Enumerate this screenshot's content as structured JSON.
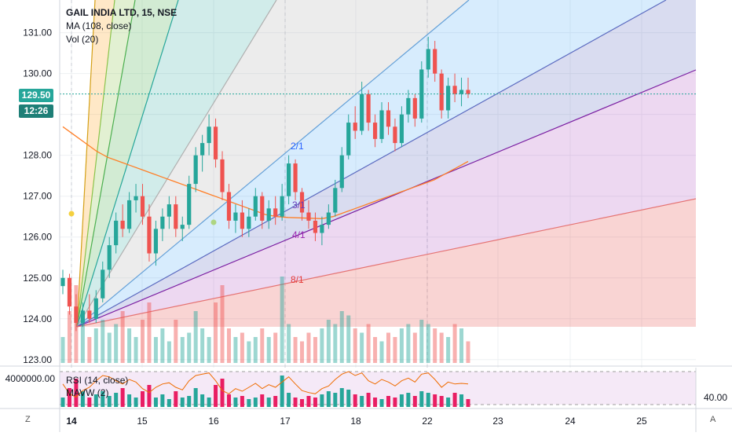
{
  "header": {
    "symbol": "GAIL INDIA LTD, 15, NSE",
    "ma": "MA (108, close)",
    "vol": "Vol (20)"
  },
  "price_axis": {
    "last_price": "129.50",
    "countdown": "12:26"
  },
  "lower_pane": {
    "rsi_label": "RSI (14, close)",
    "mavw_label": "MAVW (2)",
    "volume_tick": "4000000.00",
    "rsi_tick": "40.00"
  },
  "corners": {
    "left": "Z",
    "right": "A"
  },
  "colors": {
    "up": "#26a69a",
    "down": "#ef5350",
    "ma": "#ff7f27",
    "last_price_tag": "#26a69a",
    "axis_text": "#131722"
  },
  "chart_data": {
    "type": "candlestick",
    "title": "GAIL INDIA LTD, 15, NSE",
    "x_tick_labels": [
      "14",
      "15",
      "16",
      "17",
      "18",
      "22",
      "23",
      "24",
      "25"
    ],
    "y_tick_labels": [
      "123.00",
      "124.00",
      "125.00",
      "126.00",
      "127.00",
      "128.00",
      "129.00",
      "130.00",
      "131.00"
    ],
    "ylim": [
      122.9,
      131.8
    ],
    "fan_lines": [
      {
        "label": "2/1",
        "color": "#2962ff"
      },
      {
        "label": "3/1",
        "color": "#673ab7"
      },
      {
        "label": "4/1",
        "color": "#9c27b0"
      },
      {
        "label": "8/1",
        "color": "#e53935"
      }
    ],
    "candles": [
      [
        124.8,
        125.2,
        124.6,
        125.0
      ],
      [
        125.0,
        125.1,
        124.1,
        124.3
      ],
      [
        124.3,
        124.6,
        123.7,
        123.9
      ],
      [
        123.9,
        124.4,
        123.8,
        124.2
      ],
      [
        124.2,
        124.6,
        123.9,
        124.0
      ],
      [
        124.0,
        124.7,
        123.9,
        124.5
      ],
      [
        124.5,
        125.4,
        124.4,
        125.2
      ],
      [
        125.2,
        126.0,
        125.0,
        125.8
      ],
      [
        125.8,
        126.6,
        125.6,
        126.4
      ],
      [
        126.4,
        126.8,
        126.0,
        126.2
      ],
      [
        126.2,
        127.1,
        126.1,
        126.9
      ],
      [
        126.9,
        127.3,
        126.6,
        127.0
      ],
      [
        127.0,
        127.3,
        126.3,
        126.5
      ],
      [
        126.5,
        126.8,
        125.4,
        125.6
      ],
      [
        125.6,
        126.4,
        125.3,
        126.2
      ],
      [
        126.2,
        126.7,
        125.9,
        126.5
      ],
      [
        126.5,
        127.0,
        126.2,
        126.8
      ],
      [
        126.8,
        127.0,
        126.0,
        126.2
      ],
      [
        126.2,
        126.5,
        125.9,
        126.3
      ],
      [
        126.3,
        127.5,
        126.2,
        127.3
      ],
      [
        127.3,
        128.2,
        127.1,
        128.0
      ],
      [
        128.0,
        128.5,
        127.6,
        128.3
      ],
      [
        128.3,
        129.0,
        128.0,
        128.7
      ],
      [
        128.7,
        128.9,
        127.7,
        127.9
      ],
      [
        127.9,
        128.1,
        126.9,
        127.1
      ],
      [
        127.1,
        127.3,
        126.2,
        126.4
      ],
      [
        126.4,
        126.8,
        126.1,
        126.6
      ],
      [
        126.6,
        126.9,
        126.0,
        126.2
      ],
      [
        126.2,
        126.7,
        126.0,
        126.5
      ],
      [
        126.5,
        127.2,
        126.4,
        127.0
      ],
      [
        127.0,
        127.1,
        126.2,
        126.4
      ],
      [
        126.4,
        126.9,
        126.2,
        126.7
      ],
      [
        126.7,
        127.0,
        126.3,
        126.5
      ],
      [
        126.5,
        127.3,
        126.4,
        127.0
      ],
      [
        127.0,
        128.0,
        126.8,
        127.8
      ],
      [
        127.8,
        127.9,
        126.9,
        127.1
      ],
      [
        127.1,
        127.2,
        126.4,
        126.6
      ],
      [
        126.6,
        126.9,
        126.2,
        126.4
      ],
      [
        126.4,
        126.6,
        125.9,
        126.1
      ],
      [
        126.1,
        126.5,
        125.8,
        126.3
      ],
      [
        126.3,
        126.8,
        126.2,
        126.6
      ],
      [
        126.6,
        127.4,
        126.5,
        127.2
      ],
      [
        127.2,
        128.2,
        127.1,
        128.0
      ],
      [
        128.0,
        129.0,
        127.9,
        128.8
      ],
      [
        128.8,
        129.2,
        128.4,
        128.6
      ],
      [
        128.6,
        129.8,
        128.5,
        129.5
      ],
      [
        129.5,
        129.6,
        128.6,
        128.8
      ],
      [
        128.8,
        129.0,
        128.2,
        128.4
      ],
      [
        128.4,
        129.3,
        128.3,
        129.1
      ],
      [
        129.1,
        129.3,
        128.5,
        128.7
      ],
      [
        128.7,
        128.9,
        128.1,
        128.3
      ],
      [
        128.3,
        129.2,
        128.2,
        129.0
      ],
      [
        129.0,
        129.6,
        128.8,
        129.4
      ],
      [
        129.4,
        129.5,
        128.7,
        128.9
      ],
      [
        128.9,
        130.3,
        128.8,
        130.1
      ],
      [
        130.1,
        130.9,
        129.9,
        130.6
      ],
      [
        130.6,
        130.8,
        129.8,
        130.0
      ],
      [
        130.0,
        130.1,
        128.9,
        129.1
      ],
      [
        129.1,
        129.9,
        128.9,
        129.7
      ],
      [
        129.7,
        130.0,
        129.3,
        129.5
      ],
      [
        129.5,
        129.9,
        129.2,
        129.6
      ],
      [
        129.6,
        129.9,
        129.4,
        129.5
      ]
    ],
    "volume_note": "volume bars shown in lower part of main pane",
    "ma_values": [
      128.7,
      128.5,
      128.3,
      128.1,
      127.95,
      127.85,
      127.75,
      127.65,
      127.55,
      127.45,
      127.35,
      127.25,
      127.15,
      127.05,
      126.95,
      126.85,
      126.75,
      126.65,
      126.55,
      126.5,
      126.48,
      126.47,
      126.46,
      126.45,
      126.5,
      126.6,
      126.7,
      126.8,
      126.9,
      127.0,
      127.1,
      127.2,
      127.3,
      127.4,
      127.55,
      127.7,
      127.85
    ],
    "volumes": [
      0.3,
      0.6,
      0.9,
      0.5,
      0.3,
      0.4,
      0.5,
      0.35,
      0.45,
      0.6,
      0.4,
      0.3,
      0.5,
      0.7,
      0.3,
      0.4,
      0.25,
      0.5,
      0.3,
      0.35,
      0.6,
      0.4,
      0.3,
      0.7,
      0.9,
      0.4,
      0.3,
      0.35,
      0.25,
      0.3,
      0.4,
      0.3,
      0.35,
      1.0,
      0.45,
      0.3,
      0.25,
      0.35,
      0.3,
      0.4,
      0.5,
      0.45,
      0.6,
      0.55,
      0.4,
      0.35,
      0.45,
      0.3,
      0.25,
      0.35,
      0.3,
      0.4,
      0.45,
      0.35,
      0.5,
      0.45,
      0.4,
      0.35,
      0.3,
      0.45,
      0.4,
      0.25
    ],
    "rsi_values": [
      55,
      40,
      35,
      45,
      50,
      60,
      68,
      66,
      60,
      55,
      62,
      58,
      48,
      42,
      50,
      55,
      57,
      50,
      46,
      60,
      68,
      70,
      72,
      60,
      45,
      40,
      48,
      44,
      50,
      56,
      48,
      54,
      50,
      58,
      66,
      55,
      45,
      42,
      40,
      48,
      52,
      62,
      70,
      74,
      68,
      72,
      60,
      55,
      62,
      58,
      52,
      60,
      64,
      58,
      70,
      72,
      62,
      50,
      58,
      55,
      56,
      55
    ],
    "rsi_ticks": [
      "40.00"
    ]
  }
}
